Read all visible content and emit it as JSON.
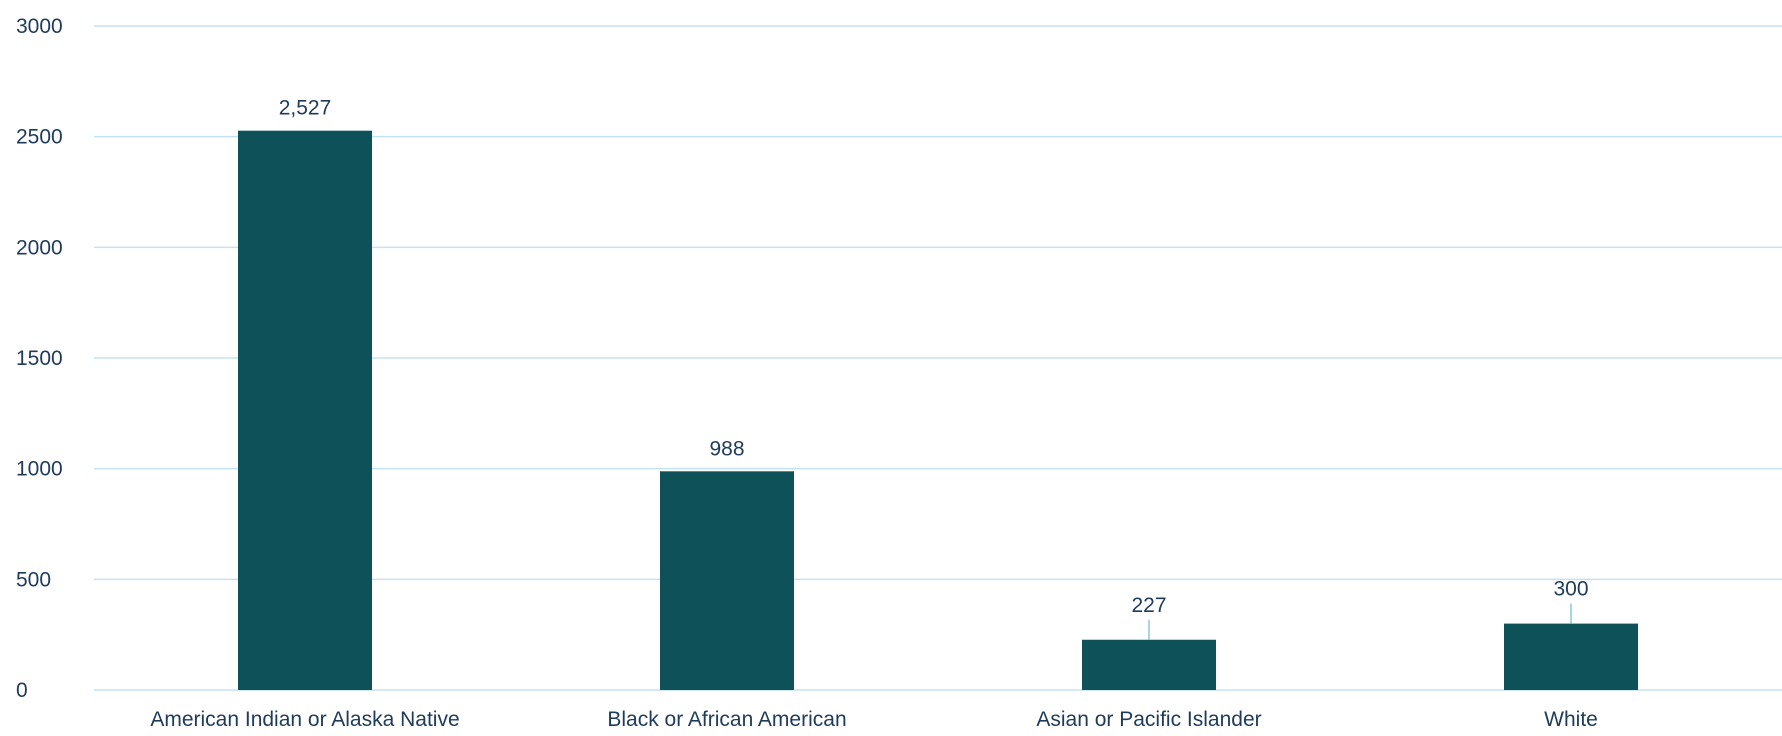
{
  "chart_data": {
    "type": "bar",
    "title": "",
    "xlabel": "",
    "ylabel": "",
    "categories": [
      "American Indian or Alaska Native",
      "Black or African American",
      "Asian or Pacific Islander",
      "White"
    ],
    "values": [
      2527,
      988,
      227,
      300
    ],
    "data_labels": [
      "2,527",
      "988",
      "227",
      "300"
    ],
    "ylim": [
      0,
      3000
    ],
    "yticks": [
      0,
      500,
      1000,
      1500,
      2000,
      2500,
      3000
    ],
    "ytick_labels": [
      "0",
      "500",
      "1000",
      "1500",
      "2000",
      "2500",
      "3000"
    ],
    "grid": true,
    "legend": "none",
    "colors": {
      "bar": "#0e5158",
      "grid": "#c4e3f1",
      "text": "#1f3b5a",
      "leader": "#6fb8d6"
    }
  }
}
